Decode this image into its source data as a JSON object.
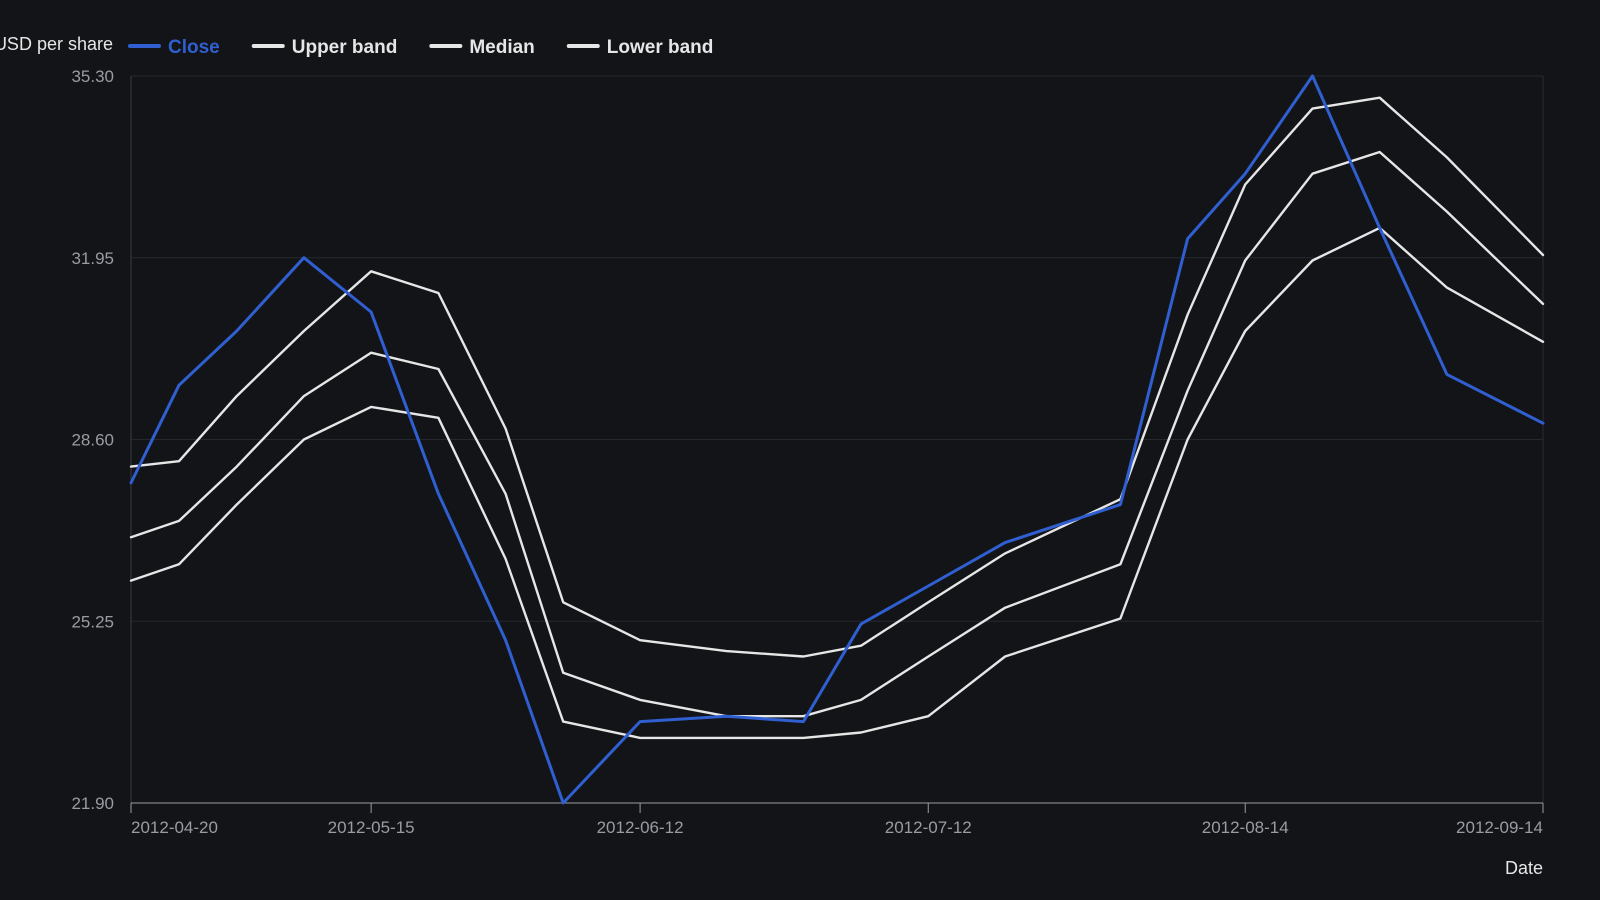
{
  "chart_data": {
    "type": "line",
    "ylabel": "USD per share",
    "xlabel": "Date",
    "ylim": [
      21.9,
      35.3
    ],
    "yticks": [
      "35.30",
      "31.95",
      "28.60",
      "25.25",
      "21.90"
    ],
    "xticks": [
      "2012-04-20",
      "2012-05-15",
      "2012-06-12",
      "2012-07-12",
      "2012-08-14",
      "2012-09-14"
    ],
    "grid": true,
    "legend": "top-left",
    "x": [
      "2012-04-20",
      "2012-04-25",
      "2012-05-01",
      "2012-05-08",
      "2012-05-15",
      "2012-05-22",
      "2012-05-29",
      "2012-06-04",
      "2012-06-12",
      "2012-06-21",
      "2012-06-29",
      "2012-07-05",
      "2012-07-12",
      "2012-07-20",
      "2012-08-01",
      "2012-08-08",
      "2012-08-14",
      "2012-08-21",
      "2012-08-28",
      "2012-09-04",
      "2012-09-14"
    ],
    "series": [
      {
        "name": "Close",
        "color": "#2f5fd0",
        "values": [
          27.8,
          29.6,
          30.6,
          31.95,
          30.95,
          27.6,
          24.9,
          21.9,
          23.4,
          23.5,
          23.4,
          25.2,
          25.9,
          26.7,
          27.4,
          32.3,
          33.5,
          35.3,
          32.5,
          29.8,
          28.9
        ]
      },
      {
        "name": "Upper band",
        "color": "#e6e6e6",
        "values": [
          28.1,
          28.2,
          29.4,
          30.6,
          31.7,
          31.3,
          28.8,
          25.6,
          24.9,
          24.7,
          24.6,
          24.8,
          25.6,
          26.5,
          27.5,
          30.9,
          33.3,
          34.7,
          34.9,
          33.8,
          32.0
        ]
      },
      {
        "name": "Median",
        "color": "#e6e6e6",
        "values": [
          26.8,
          27.1,
          28.1,
          29.4,
          30.2,
          29.9,
          27.6,
          24.3,
          23.8,
          23.5,
          23.5,
          23.8,
          24.6,
          25.5,
          26.3,
          29.5,
          31.9,
          33.5,
          33.9,
          32.8,
          31.1
        ]
      },
      {
        "name": "Lower band",
        "color": "#e6e6e6",
        "values": [
          26.0,
          26.3,
          27.4,
          28.6,
          29.2,
          29.0,
          26.4,
          23.4,
          23.1,
          23.1,
          23.1,
          23.2,
          23.5,
          24.6,
          25.3,
          28.6,
          30.6,
          31.9,
          32.5,
          31.4,
          30.4
        ]
      }
    ]
  }
}
